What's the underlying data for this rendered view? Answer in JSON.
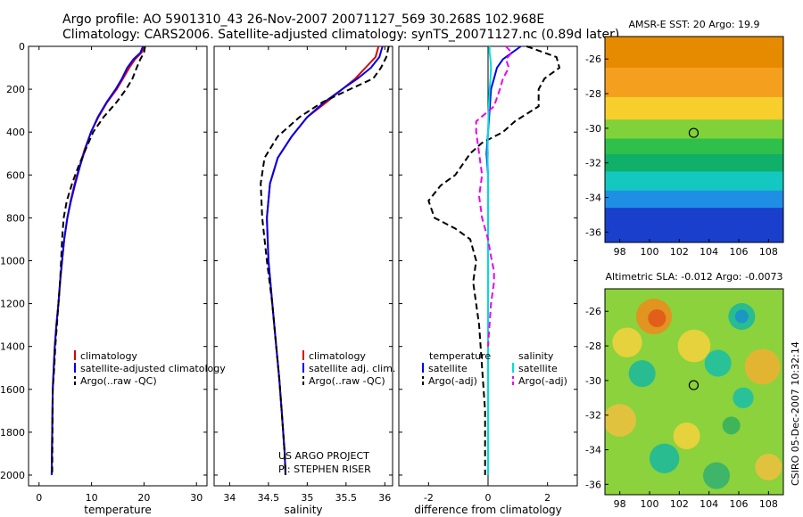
{
  "header": {
    "line1": "Argo profile: AO 5901310_43 26-Nov-2007 20071127_569 30.268S 102.968E",
    "line2": "Climatology: CARS2006. Satellite-adjusted climatology: synTS_20071127.nc (0.89d later)"
  },
  "colors": {
    "climatology": "#dd0000",
    "satellite": "#0000ee",
    "argo": "#000000",
    "salinity_satellite": "#00dddd",
    "salinity_argo": "#ee00ee"
  },
  "footer": {
    "project": "US ARGO PROJECT",
    "pi": "PI: STEPHEN RISER",
    "credit": "CSIRO 05-Dec-2007 10:32:14"
  },
  "chart_data": [
    {
      "type": "line",
      "xlabel": "temperature",
      "xlim": [
        -2,
        32
      ],
      "ylim": [
        2050,
        0
      ],
      "xticks": [
        0,
        10,
        20,
        30
      ],
      "yticks": [
        0,
        200,
        400,
        600,
        800,
        1000,
        1200,
        1400,
        1600,
        1800,
        2000
      ],
      "legend": [
        "climatology",
        "satellite-adjusted climatology",
        "Argo(..raw -QC)"
      ],
      "legend_placement": "lower-right",
      "series": [
        {
          "name": "climatology",
          "x": [
            20.1,
            19.5,
            18.3,
            17.2,
            16.0,
            14.8,
            13.0,
            11.3,
            9.9,
            8.7,
            7.7,
            6.8,
            6.0,
            5.4,
            4.8,
            4.4,
            4.0,
            3.7,
            3.3,
            3.0,
            2.8,
            2.6,
            2.4
          ],
          "y": [
            0,
            30,
            60,
            100,
            150,
            200,
            260,
            330,
            400,
            480,
            560,
            640,
            720,
            800,
            900,
            1000,
            1100,
            1200,
            1300,
            1400,
            1500,
            1600,
            2000
          ]
        },
        {
          "name": "satellite-adjusted climatology",
          "x": [
            19.8,
            19.3,
            18.0,
            16.8,
            15.8,
            14.6,
            12.9,
            11.2,
            9.9,
            8.8,
            7.8,
            6.9,
            6.1,
            5.4,
            4.8,
            4.4,
            4.0,
            3.7,
            3.3,
            3.0,
            2.8,
            2.6,
            2.4
          ],
          "y": [
            0,
            30,
            60,
            100,
            150,
            200,
            260,
            330,
            400,
            480,
            560,
            640,
            720,
            800,
            900,
            1000,
            1100,
            1200,
            1300,
            1400,
            1500,
            1600,
            2000
          ]
        },
        {
          "name": "Argo(..raw -QC)",
          "x": [
            20.2,
            20.0,
            19.3,
            18.6,
            17.8,
            16.6,
            14.8,
            12.3,
            10.3,
            8.9,
            7.5,
            6.3,
            5.3,
            4.7,
            4.4,
            4.2,
            4.0,
            3.7,
            3.4,
            3.1,
            2.9,
            2.6,
            2.5
          ],
          "y": [
            0,
            30,
            60,
            100,
            150,
            200,
            260,
            330,
            400,
            480,
            560,
            640,
            720,
            800,
            900,
            1000,
            1100,
            1200,
            1300,
            1400,
            1500,
            1600,
            2000
          ]
        }
      ]
    },
    {
      "type": "line",
      "xlabel": "salinity",
      "xlim": [
        33.8,
        36.1
      ],
      "ylim": [
        2050,
        0
      ],
      "xticks": [
        34,
        34.5,
        35,
        35.5,
        36
      ],
      "legend": [
        "climatology",
        "satellite adj. clim.",
        "Argo(..raw -QC)"
      ],
      "legend_placement": "lower-right",
      "series": [
        {
          "name": "climatology",
          "x": [
            35.92,
            35.88,
            35.75,
            35.62,
            35.45,
            35.25,
            35.0,
            34.8,
            34.62,
            34.52,
            34.48,
            34.5,
            34.55,
            34.6,
            34.64,
            34.67,
            34.69,
            34.71,
            34.72
          ],
          "y": [
            0,
            50,
            100,
            150,
            200,
            260,
            330,
            420,
            520,
            640,
            800,
            1000,
            1200,
            1400,
            1550,
            1700,
            1800,
            1900,
            2000
          ]
        },
        {
          "name": "satellite adj. clim.",
          "x": [
            35.97,
            35.93,
            35.82,
            35.65,
            35.45,
            35.22,
            35.0,
            34.8,
            34.62,
            34.52,
            34.48,
            34.5,
            34.55,
            34.6,
            34.64,
            34.67,
            34.69,
            34.71,
            34.72
          ],
          "y": [
            0,
            50,
            100,
            150,
            200,
            260,
            330,
            420,
            520,
            640,
            800,
            1000,
            1200,
            1400,
            1550,
            1700,
            1800,
            1900,
            2000
          ]
        },
        {
          "name": "Argo(..raw -QC)",
          "x": [
            36.05,
            36.02,
            35.95,
            35.85,
            35.55,
            35.2,
            34.9,
            34.62,
            34.45,
            34.4,
            34.42,
            34.48,
            34.55,
            34.6,
            34.64,
            34.67,
            34.69,
            34.71,
            34.72
          ],
          "y": [
            0,
            50,
            100,
            150,
            200,
            260,
            330,
            420,
            520,
            640,
            800,
            1000,
            1200,
            1400,
            1550,
            1700,
            1800,
            1900,
            2000
          ]
        }
      ]
    },
    {
      "type": "line",
      "xlabel": "difference from climatology",
      "xlim": [
        -3,
        3
      ],
      "ylim": [
        2050,
        0
      ],
      "xticks": [
        -2,
        0,
        2
      ],
      "legend_groups": [
        "temperature",
        "salinity"
      ],
      "legend": [
        "satellite",
        "Argo(-adj)",
        "satellite",
        "Argo(-adj)"
      ],
      "legend_placement": "lower-center",
      "series": [
        {
          "name": "satellite",
          "group": "temperature",
          "x": [
            1.1,
            0.8,
            0.5,
            0.3,
            0.2,
            0.1,
            0.05,
            0.0,
            -0.05,
            0.0,
            0.0,
            0.0,
            0.0,
            0.0,
            0.0,
            0.0,
            0.0
          ],
          "y": [
            0,
            30,
            60,
            100,
            150,
            200,
            300,
            400,
            500,
            600,
            800,
            1000,
            1200,
            1400,
            1600,
            1800,
            2000
          ]
        },
        {
          "name": "Argo(-adj)",
          "group": "temperature",
          "x": [
            1.3,
            2.3,
            2.4,
            1.9,
            1.7,
            1.7,
            0.9,
            0.5,
            -0.2,
            -0.6,
            -1.1,
            -1.6,
            -2.0,
            -1.8,
            -1.1,
            -0.6,
            -0.4,
            -0.5,
            -0.3,
            -0.2,
            -0.1,
            -0.1,
            -0.1
          ],
          "y": [
            0,
            50,
            100,
            150,
            200,
            280,
            350,
            400,
            450,
            500,
            600,
            650,
            720,
            800,
            850,
            900,
            1000,
            1100,
            1300,
            1500,
            1700,
            1900,
            2000
          ]
        },
        {
          "name": "satellite",
          "group": "salinity",
          "x": [
            0.05,
            0.05,
            0.08,
            0.1,
            0.08,
            0.05,
            0.02,
            0.0,
            -0.02,
            0.0,
            0.0,
            0.0,
            0.0,
            0.0,
            0.0,
            0.0,
            0.0
          ],
          "y": [
            0,
            30,
            60,
            100,
            150,
            200,
            300,
            400,
            500,
            600,
            800,
            1000,
            1200,
            1400,
            1600,
            1800,
            2000
          ]
        },
        {
          "name": "Argo(-adj)",
          "group": "salinity",
          "x": [
            0.6,
            0.8,
            0.6,
            0.7,
            0.5,
            0.4,
            0.2,
            -0.4,
            -0.4,
            -0.3,
            -0.2,
            -0.3,
            -0.2,
            0.0,
            0.1,
            0.2,
            0.2,
            0.1,
            0.0
          ],
          "y": [
            0,
            30,
            60,
            100,
            150,
            200,
            280,
            350,
            400,
            500,
            600,
            700,
            800,
            900,
            980,
            1050,
            1100,
            1200,
            1400
          ]
        }
      ]
    },
    {
      "type": "heatmap",
      "title": "AMSR-E SST: 20 Argo: 19.9",
      "xlim": [
        97,
        109
      ],
      "ylim": [
        -36.6,
        -24.7
      ],
      "xticks": [
        98,
        100,
        102,
        104,
        106,
        108
      ],
      "yticks": [
        -26,
        -28,
        -30,
        -32,
        -34,
        -36
      ],
      "marker": {
        "lon": 102.968,
        "lat": -30.268
      },
      "zones": [
        {
          "lat_from": -24.7,
          "lat_to": -26.5,
          "color": "#e68a00"
        },
        {
          "lat_from": -26.5,
          "lat_to": -28.2,
          "color": "#f4a01e"
        },
        {
          "lat_from": -28.2,
          "lat_to": -29.5,
          "color": "#f6cf2c"
        },
        {
          "lat_from": -29.5,
          "lat_to": -30.6,
          "color": "#7fd23a"
        },
        {
          "lat_from": -30.6,
          "lat_to": -31.5,
          "color": "#2ec04a"
        },
        {
          "lat_from": -31.5,
          "lat_to": -32.5,
          "color": "#10b06a"
        },
        {
          "lat_from": -32.5,
          "lat_to": -33.6,
          "color": "#12c8c0"
        },
        {
          "lat_from": -33.6,
          "lat_to": -34.6,
          "color": "#1f8fe6"
        },
        {
          "lat_from": -34.6,
          "lat_to": -36.6,
          "color": "#1a3fcc"
        }
      ]
    },
    {
      "type": "heatmap",
      "title": "Altimetric SLA: -0.012 Argo: -0.0073",
      "xlim": [
        97,
        109
      ],
      "ylim": [
        -36.6,
        -24.7
      ],
      "xticks": [
        98,
        100,
        102,
        104,
        106,
        108
      ],
      "yticks": [
        -26,
        -28,
        -30,
        -32,
        -34,
        -36
      ],
      "marker": {
        "lon": 102.968,
        "lat": -30.268
      },
      "background_color": "#8bd23c",
      "blobs": [
        {
          "lon": 100.3,
          "lat": -26.3,
          "r": 1.2,
          "color": "#f08a1a"
        },
        {
          "lon": 100.5,
          "lat": -26.4,
          "r": 0.6,
          "color": "#e0561a"
        },
        {
          "lon": 98.5,
          "lat": -27.8,
          "r": 1.0,
          "color": "#f6d23c"
        },
        {
          "lon": 103.0,
          "lat": -28.0,
          "r": 1.1,
          "color": "#f6d23c"
        },
        {
          "lon": 104.6,
          "lat": -29.0,
          "r": 0.9,
          "color": "#18c0a8"
        },
        {
          "lon": 106.2,
          "lat": -26.3,
          "r": 0.9,
          "color": "#18b8a0"
        },
        {
          "lon": 106.2,
          "lat": -26.3,
          "r": 0.45,
          "color": "#1890cc"
        },
        {
          "lon": 99.5,
          "lat": -29.6,
          "r": 0.9,
          "color": "#18b8a0"
        },
        {
          "lon": 107.6,
          "lat": -29.2,
          "r": 1.2,
          "color": "#f0b030"
        },
        {
          "lon": 106.3,
          "lat": -31.0,
          "r": 0.7,
          "color": "#18c0a8"
        },
        {
          "lon": 98.0,
          "lat": -32.3,
          "r": 1.1,
          "color": "#f0c040"
        },
        {
          "lon": 102.5,
          "lat": -33.2,
          "r": 0.9,
          "color": "#f6d23c"
        },
        {
          "lon": 101.0,
          "lat": -34.5,
          "r": 1.0,
          "color": "#18b8a0"
        },
        {
          "lon": 108.0,
          "lat": -35.0,
          "r": 0.9,
          "color": "#f0c040"
        },
        {
          "lon": 104.5,
          "lat": -35.5,
          "r": 0.9,
          "color": "#30b070"
        },
        {
          "lon": 105.5,
          "lat": -32.6,
          "r": 0.6,
          "color": "#30b060"
        }
      ]
    }
  ]
}
